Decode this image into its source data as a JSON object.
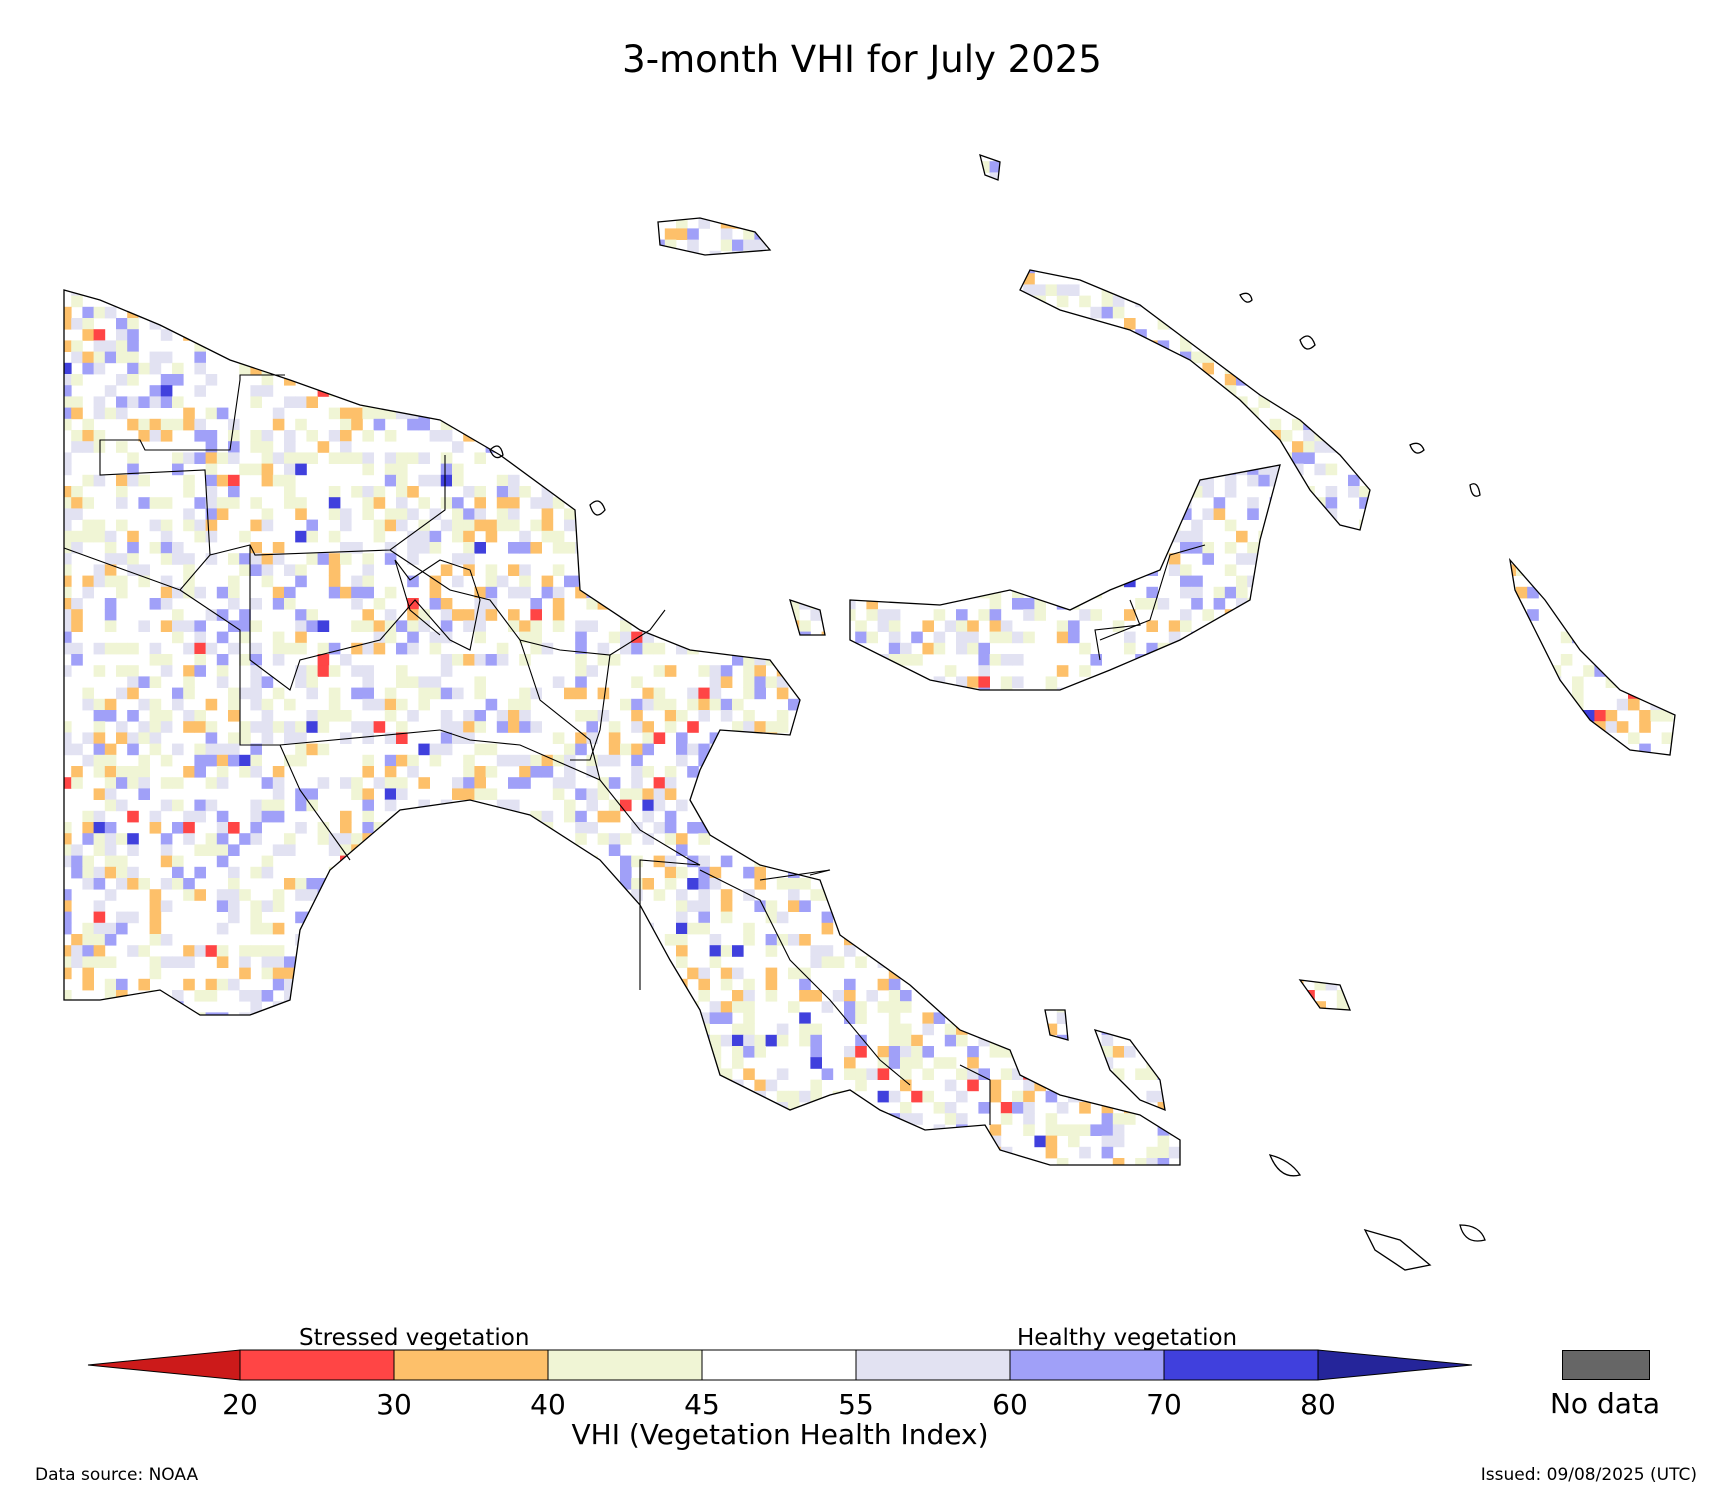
{
  "title": "3-month VHI for July 2025",
  "legend": {
    "stressed_caption": "Stressed vegetation",
    "healthy_caption": "Healthy vegetation",
    "ticks": [
      "20",
      "30",
      "40",
      "45",
      "55",
      "60",
      "70",
      "80"
    ],
    "bins": [
      {
        "range": "<20",
        "color": "#cc1a1a"
      },
      {
        "range": "20-30",
        "color": "#ff4545"
      },
      {
        "range": "30-40",
        "color": "#fdc06a"
      },
      {
        "range": "40-45",
        "color": "#f0f5d5"
      },
      {
        "range": "45-55",
        "color": "#ffffff"
      },
      {
        "range": "55-60",
        "color": "#e2e2f2"
      },
      {
        "range": "60-70",
        "color": "#a0a0f8"
      },
      {
        "range": "70-80",
        "color": "#4040dd"
      },
      {
        "range": ">80",
        "color": "#25259a"
      }
    ],
    "axis_label": "VHI (Vegetation Health Index)",
    "nodata_label": "No data",
    "nodata_color": "#666666"
  },
  "footer": {
    "source": "Data source: NOAA",
    "issued": "Issued: 09/08/2025 (UTC)"
  }
}
